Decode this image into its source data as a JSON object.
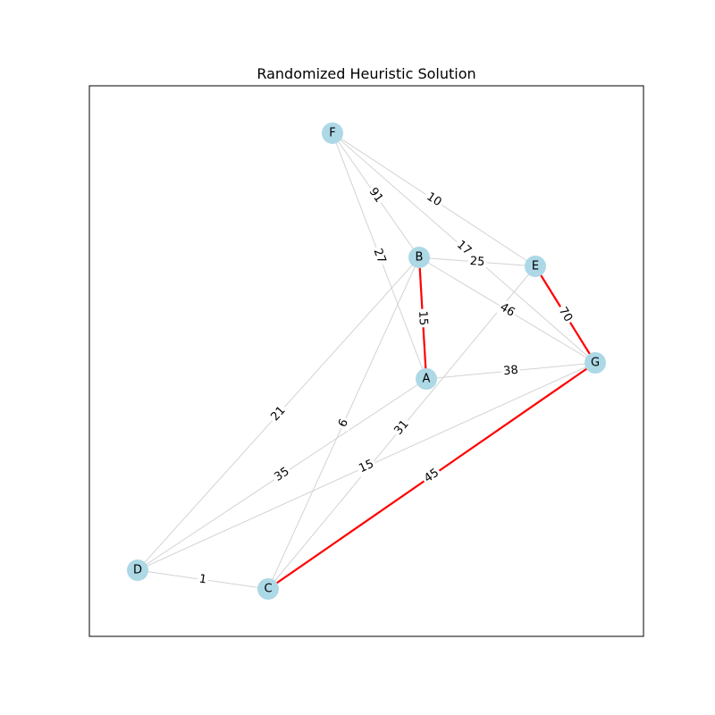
{
  "title": "Randomized Heuristic Solution",
  "colors": {
    "node_fill": "#add8e6",
    "edge_default": "#d3d3d3",
    "edge_highlight": "#ff0000",
    "frame": "#000000",
    "label_bg": "#ffffff"
  },
  "nodes": [
    {
      "id": "A",
      "label": "A"
    },
    {
      "id": "B",
      "label": "B"
    },
    {
      "id": "C",
      "label": "C"
    },
    {
      "id": "D",
      "label": "D"
    },
    {
      "id": "E",
      "label": "E"
    },
    {
      "id": "F",
      "label": "F"
    },
    {
      "id": "G",
      "label": "G"
    }
  ],
  "edges": [
    {
      "source": "F",
      "target": "B",
      "weight": "91",
      "highlighted": false
    },
    {
      "source": "F",
      "target": "E",
      "weight": "10",
      "highlighted": false
    },
    {
      "source": "F",
      "target": "G",
      "weight": "17",
      "highlighted": false
    },
    {
      "source": "F",
      "target": "A",
      "weight": "27",
      "highlighted": false
    },
    {
      "source": "B",
      "target": "E",
      "weight": "25",
      "highlighted": false
    },
    {
      "source": "B",
      "target": "G",
      "weight": "46",
      "highlighted": false
    },
    {
      "source": "B",
      "target": "A",
      "weight": "15",
      "highlighted": true
    },
    {
      "source": "B",
      "target": "D",
      "weight": "21",
      "highlighted": false
    },
    {
      "source": "B",
      "target": "C",
      "weight": "6",
      "highlighted": false
    },
    {
      "source": "E",
      "target": "G",
      "weight": "70",
      "highlighted": true
    },
    {
      "source": "E",
      "target": "C",
      "weight": "31",
      "highlighted": false
    },
    {
      "source": "A",
      "target": "G",
      "weight": "38",
      "highlighted": false
    },
    {
      "source": "A",
      "target": "D",
      "weight": "35",
      "highlighted": false
    },
    {
      "source": "G",
      "target": "D",
      "weight": "15",
      "highlighted": false
    },
    {
      "source": "G",
      "target": "C",
      "weight": "45",
      "highlighted": true
    },
    {
      "source": "D",
      "target": "C",
      "weight": "1",
      "highlighted": false
    }
  ]
}
